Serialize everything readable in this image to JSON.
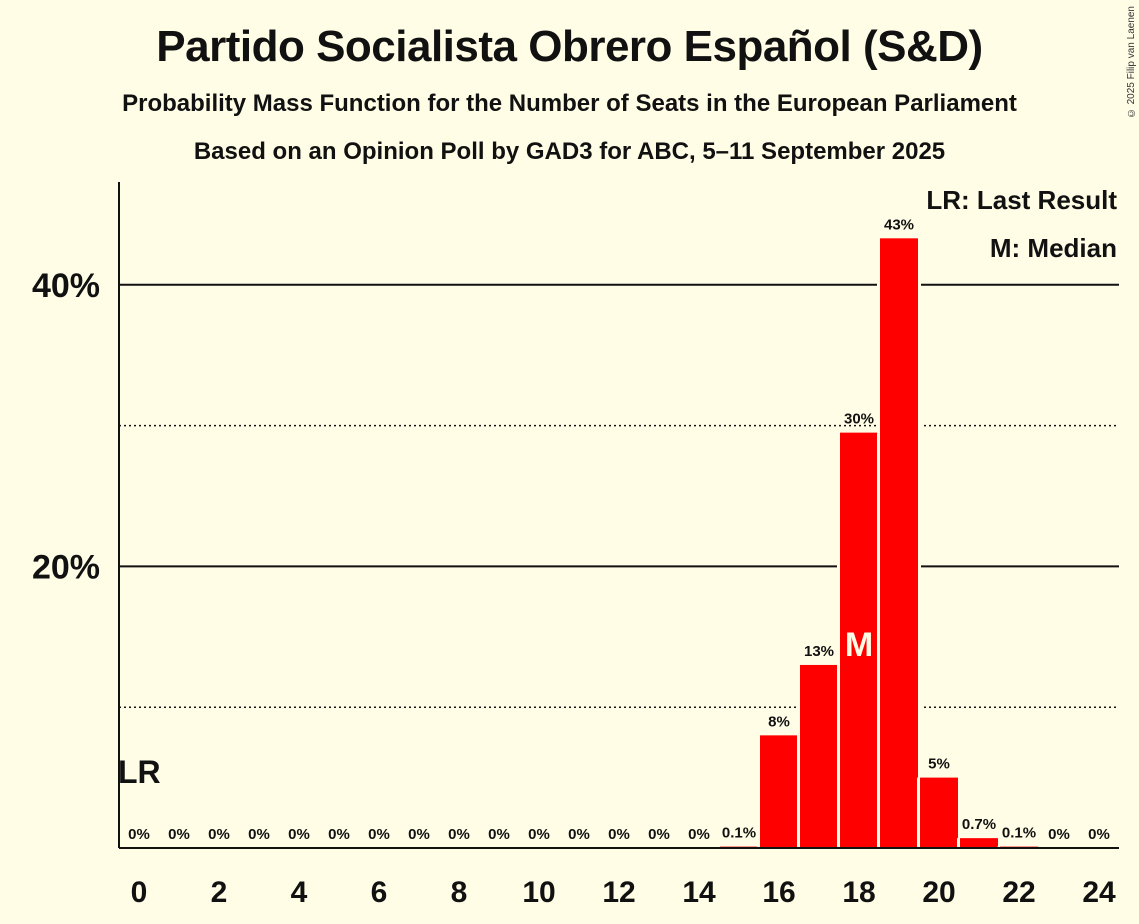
{
  "header": {
    "title": "Partido Socialista Obrero Español (S&D)",
    "subtitle1": "Probability Mass Function for the Number of Seats in the European Parliament",
    "subtitle2": "Based on an Opinion Poll by GAD3 for ABC, 5–11 September 2025",
    "copyright": "© 2025 Filip van Laenen"
  },
  "legend": {
    "last_result": "LR: Last Result",
    "median": "M: Median"
  },
  "colors": {
    "background": "#FFFDE6",
    "bar": "#FF0000",
    "text": "#111111"
  },
  "chart_data": {
    "type": "bar",
    "title": "Partido Socialista Obrero Español (S&D)",
    "xlabel": "",
    "ylabel": "",
    "categories": [
      0,
      1,
      2,
      3,
      4,
      5,
      6,
      7,
      8,
      9,
      10,
      11,
      12,
      13,
      14,
      15,
      16,
      17,
      18,
      19,
      20,
      21,
      22,
      23,
      24
    ],
    "values": [
      0,
      0,
      0,
      0,
      0,
      0,
      0,
      0,
      0,
      0,
      0,
      0,
      0,
      0,
      0,
      0.1,
      8,
      13,
      29.5,
      43.3,
      5,
      0.7,
      0.1,
      0,
      0
    ],
    "data_labels": [
      "0%",
      "0%",
      "0%",
      "0%",
      "0%",
      "0%",
      "0%",
      "0%",
      "0%",
      "0%",
      "0%",
      "0%",
      "0%",
      "0%",
      "0%",
      "0.1%",
      "8%",
      "13%",
      "30%",
      "43%",
      "5%",
      "0.7%",
      "0.1%",
      "0%",
      "0%"
    ],
    "x_tick_labels": [
      "0",
      "2",
      "4",
      "6",
      "8",
      "10",
      "12",
      "14",
      "16",
      "18",
      "20",
      "22",
      "24"
    ],
    "x_tick_values": [
      0,
      2,
      4,
      6,
      8,
      10,
      12,
      14,
      16,
      18,
      20,
      22,
      24
    ],
    "y_tick_labels": [
      "20%",
      "40%"
    ],
    "y_tick_values": [
      20,
      40
    ],
    "y_dotted_gridlines": [
      10,
      30
    ],
    "ylim": [
      0,
      47.3
    ],
    "last_result_seat": 0,
    "last_result_label": "LR",
    "median_seat": 18,
    "median_label": "M",
    "grid": true,
    "legend_position": "top-right"
  }
}
